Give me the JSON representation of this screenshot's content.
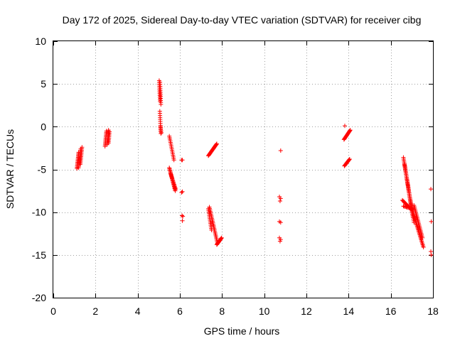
{
  "chart_data": {
    "type": "scatter",
    "title": "Day 172 of 2025, Sidereal Day-to-day VTEC variation (SDTVAR) for receiver cibg",
    "xlabel": "GPS time / hours",
    "ylabel": "SDTVAR / TECUs",
    "xlim": [
      0,
      18
    ],
    "ylim": [
      -20,
      10
    ],
    "xticks": [
      0,
      2,
      4,
      6,
      8,
      10,
      12,
      14,
      16,
      18
    ],
    "yticks": [
      -20,
      -15,
      -10,
      -5,
      0,
      5,
      10
    ],
    "xtick_labels": [
      "0",
      "2",
      "4",
      "6",
      "8",
      "10",
      "12",
      "14",
      "16",
      "18"
    ],
    "ytick_labels": [
      "-20",
      "-15",
      "-10",
      "-5",
      "0",
      "5",
      "10"
    ],
    "grid": true,
    "marker": "plus",
    "color": "#ff0000",
    "segments": [
      {
        "x0": 1.12,
        "y0": -4.9,
        "x1": 1.2,
        "y1": -3.0,
        "n": 14
      },
      {
        "x0": 1.2,
        "y0": -4.8,
        "x1": 1.3,
        "y1": -2.6,
        "n": 14
      },
      {
        "x0": 1.28,
        "y0": -4.4,
        "x1": 1.36,
        "y1": -2.4,
        "n": 12
      },
      {
        "x0": 2.45,
        "y0": -2.3,
        "x1": 2.52,
        "y1": -0.5,
        "n": 12
      },
      {
        "x0": 2.55,
        "y0": -2.1,
        "x1": 2.62,
        "y1": -0.4,
        "n": 12
      },
      {
        "x0": 2.62,
        "y0": -1.9,
        "x1": 2.66,
        "y1": -0.6,
        "n": 8
      },
      {
        "x0": 5.02,
        "y0": 5.4,
        "x1": 5.06,
        "y1": 3.0,
        "n": 12
      },
      {
        "x0": 5.06,
        "y0": 5.2,
        "x1": 5.1,
        "y1": 2.6,
        "n": 12
      },
      {
        "x0": 5.05,
        "y0": 1.8,
        "x1": 5.1,
        "y1": -0.8,
        "n": 12
      },
      {
        "x0": 5.08,
        "y0": 0.0,
        "x1": 5.12,
        "y1": -0.7,
        "n": 4
      },
      {
        "x0": 5.5,
        "y0": -1.1,
        "x1": 5.72,
        "y1": -3.9,
        "n": 16
      },
      {
        "x0": 5.5,
        "y0": -4.8,
        "x1": 5.78,
        "y1": -7.5,
        "n": 22
      },
      {
        "x0": 5.56,
        "y0": -5.5,
        "x1": 5.8,
        "y1": -7.3,
        "n": 14
      },
      {
        "x0": 7.35,
        "y0": -3.4,
        "x1": 7.75,
        "y1": -2.0,
        "n": 22
      },
      {
        "x0": 7.4,
        "y0": -9.4,
        "x1": 7.78,
        "y1": -13.6,
        "n": 26
      },
      {
        "x0": 7.35,
        "y0": -9.6,
        "x1": 7.5,
        "y1": -12.1,
        "n": 14
      },
      {
        "x0": 7.75,
        "y0": -13.8,
        "x1": 7.98,
        "y1": -13.0,
        "n": 14
      },
      {
        "x0": 13.78,
        "y0": -1.5,
        "x1": 14.08,
        "y1": -0.4,
        "n": 16
      },
      {
        "x0": 13.8,
        "y0": -4.6,
        "x1": 14.05,
        "y1": -3.8,
        "n": 12
      },
      {
        "x0": 16.6,
        "y0": -3.6,
        "x1": 17.05,
        "y1": -10.6,
        "n": 40
      },
      {
        "x0": 16.65,
        "y0": -4.4,
        "x1": 17.1,
        "y1": -11.2,
        "n": 36
      },
      {
        "x0": 17.0,
        "y0": -9.6,
        "x1": 17.55,
        "y1": -14.1,
        "n": 32
      },
      {
        "x0": 17.1,
        "y0": -9.2,
        "x1": 17.5,
        "y1": -13.0,
        "n": 24
      },
      {
        "x0": 16.55,
        "y0": -8.6,
        "x1": 16.9,
        "y1": -9.5,
        "n": 12
      },
      {
        "x0": 16.6,
        "y0": -9.3,
        "x1": 17.0,
        "y1": -9.6,
        "n": 10
      }
    ],
    "points": [
      {
        "x": 6.08,
        "y": -3.9
      },
      {
        "x": 6.12,
        "y": -3.9
      },
      {
        "x": 6.08,
        "y": -7.7
      },
      {
        "x": 6.12,
        "y": -7.6
      },
      {
        "x": 6.1,
        "y": -10.4
      },
      {
        "x": 6.14,
        "y": -10.5
      },
      {
        "x": 6.12,
        "y": -11.0
      },
      {
        "x": 10.72,
        "y": -8.2
      },
      {
        "x": 10.78,
        "y": -8.4
      },
      {
        "x": 10.75,
        "y": -8.7
      },
      {
        "x": 10.72,
        "y": -11.1
      },
      {
        "x": 10.78,
        "y": -11.2
      },
      {
        "x": 10.72,
        "y": -13.0
      },
      {
        "x": 10.78,
        "y": -13.2
      },
      {
        "x": 10.75,
        "y": -13.4
      },
      {
        "x": 10.78,
        "y": -2.8
      },
      {
        "x": 13.82,
        "y": 0.1
      },
      {
        "x": 17.9,
        "y": -7.3
      },
      {
        "x": 17.92,
        "y": -11.1
      },
      {
        "x": 17.9,
        "y": -14.6
      },
      {
        "x": 17.92,
        "y": -15.0
      }
    ]
  }
}
